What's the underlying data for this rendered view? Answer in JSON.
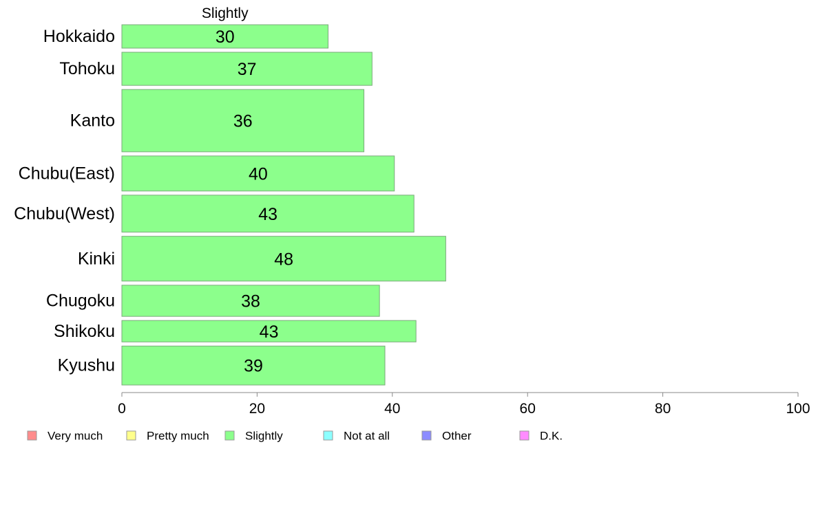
{
  "chart_data": {
    "type": "bar",
    "orientation": "horizontal",
    "stacked": true,
    "segment_title": "Slightly",
    "categories": [
      "Hokkaido",
      "Tohoku",
      "Kanto",
      "Chubu(East)",
      "Chubu(West)",
      "Kinki",
      "Chugoku",
      "Shikoku",
      "Kyushu"
    ],
    "category_weights": [
      0.6,
      0.85,
      1.6,
      0.9,
      0.95,
      1.15,
      0.8,
      0.55,
      1.0
    ],
    "series": [
      {
        "name": "Slightly",
        "color": "#8cff8c",
        "values": [
          30.5,
          37,
          35.8,
          40.3,
          43.2,
          47.9,
          38.1,
          43.5,
          38.9
        ],
        "labels": [
          "30",
          "37",
          "36",
          "40",
          "43",
          "48",
          "38",
          "43",
          "39"
        ]
      }
    ],
    "xlim": [
      0,
      100
    ],
    "xticks": [
      "0",
      "20",
      "40",
      "60",
      "80",
      "100"
    ],
    "grid": false,
    "legend": {
      "placement": "bottom",
      "entries": [
        {
          "label": "Very much",
          "color": "#ff8c8c"
        },
        {
          "label": "Pretty much",
          "color": "#ffff8c"
        },
        {
          "label": "Slightly",
          "color": "#8cff8c"
        },
        {
          "label": "Not at all",
          "color": "#8cffff"
        },
        {
          "label": "Other",
          "color": "#8c8cff"
        },
        {
          "label": "D.K.",
          "color": "#ff8cff"
        }
      ]
    }
  }
}
